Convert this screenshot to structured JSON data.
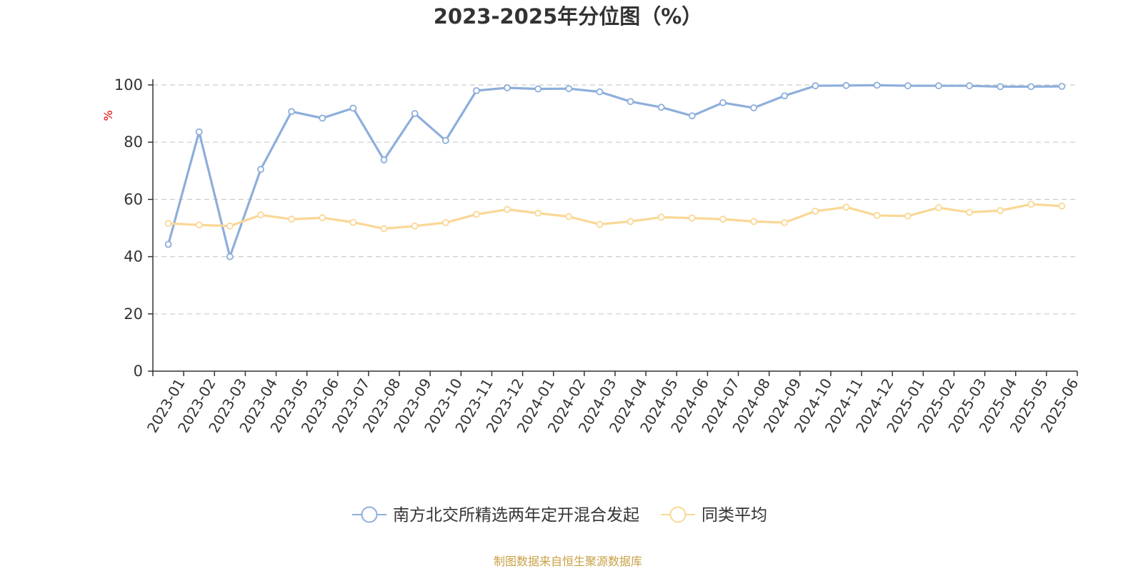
{
  "chart_data": {
    "type": "line",
    "title": "2023-2025年分位图（%）",
    "ylabel": "%",
    "xlabel": "",
    "ylim": [
      0,
      100
    ],
    "yticks": [
      0,
      20,
      40,
      60,
      80,
      100
    ],
    "grid": true,
    "legend_position": "bottom",
    "categories": [
      "2023-01",
      "2023-02",
      "2023-03",
      "2023-04",
      "2023-05",
      "2023-06",
      "2023-07",
      "2023-08",
      "2023-09",
      "2023-10",
      "2023-11",
      "2023-12",
      "2024-01",
      "2024-02",
      "2024-03",
      "2024-04",
      "2024-05",
      "2024-06",
      "2024-07",
      "2024-08",
      "2024-09",
      "2024-10",
      "2024-11",
      "2024-12",
      "2025-01",
      "2025-02",
      "2025-03",
      "2025-04",
      "2025-05",
      "2025-06"
    ],
    "series": [
      {
        "name": "南方北交所精选两年定开混合发起",
        "color": "#8eaedb",
        "values": [
          44.3,
          83.6,
          40.0,
          70.5,
          90.7,
          88.4,
          91.9,
          73.8,
          90.0,
          80.6,
          98.0,
          99.0,
          98.6,
          98.7,
          97.6,
          94.2,
          92.2,
          89.2,
          93.8,
          92.0,
          96.2,
          99.7,
          99.8,
          99.9,
          99.7,
          99.7,
          99.7,
          99.4,
          99.4,
          99.5
        ]
      },
      {
        "name": "同类平均",
        "color": "#fad795",
        "values": [
          51.6,
          51.1,
          50.7,
          54.6,
          53.1,
          53.6,
          52.0,
          49.8,
          50.7,
          51.9,
          54.8,
          56.5,
          55.2,
          54.0,
          51.3,
          52.3,
          53.8,
          53.5,
          53.1,
          52.3,
          51.9,
          55.9,
          57.3,
          54.4,
          54.2,
          57.1,
          55.5,
          56.1,
          58.3,
          57.7
        ]
      }
    ],
    "source_note": "制图数据来自恒生聚源数据库"
  }
}
